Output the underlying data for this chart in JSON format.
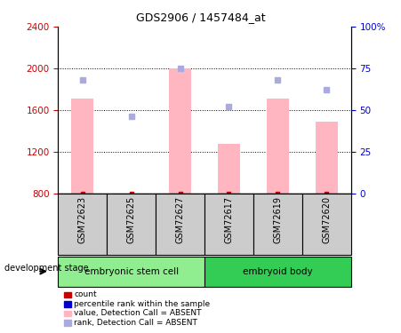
{
  "title": "GDS2906 / 1457484_at",
  "samples": [
    "GSM72623",
    "GSM72625",
    "GSM72627",
    "GSM72617",
    "GSM72619",
    "GSM72620"
  ],
  "groups": [
    {
      "label": "embryonic stem cell",
      "count": 3,
      "color": "#90EE90"
    },
    {
      "label": "embryoid body",
      "count": 3,
      "color": "#33CC55"
    }
  ],
  "bar_values": [
    1710,
    800,
    2000,
    1270,
    1710,
    1490
  ],
  "rank_values": [
    68,
    46,
    75,
    52,
    68,
    62
  ],
  "bar_bottom": 800,
  "ylim_left": [
    800,
    2400
  ],
  "ylim_right": [
    0,
    100
  ],
  "yticks_left": [
    800,
    1200,
    1600,
    2000,
    2400
  ],
  "yticks_right": [
    0,
    25,
    50,
    75,
    100
  ],
  "bar_color": "#FFB6C1",
  "rank_color": "#AAAADD",
  "dot_color_red": "#CC0000",
  "left_tick_color": "#CC0000",
  "right_tick_color": "#0000CC",
  "legend_items": [
    {
      "label": "count",
      "color": "#CC0000"
    },
    {
      "label": "percentile rank within the sample",
      "color": "#0000CC"
    },
    {
      "label": "value, Detection Call = ABSENT",
      "color": "#FFB6C1"
    },
    {
      "label": "rank, Detection Call = ABSENT",
      "color": "#AAAADD"
    }
  ],
  "xlabel_group": "development stage",
  "dotted_grid_values": [
    1200,
    1600,
    2000
  ],
  "bar_width": 0.45,
  "sample_box_color": "#CCCCCC",
  "fig_bg": "#FFFFFF"
}
